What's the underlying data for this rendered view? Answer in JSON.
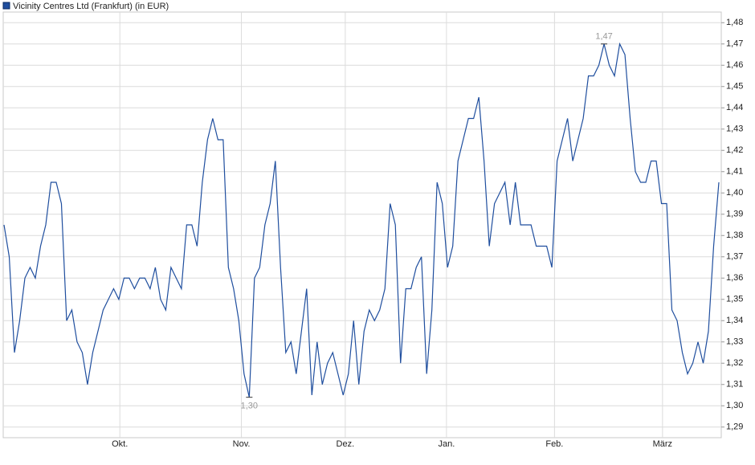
{
  "chart_data": {
    "type": "line",
    "title": "Vicinity Centres Ltd (Frankfurt) (in EUR)",
    "series": [
      {
        "name": "Vicinity Centres Ltd (Frankfurt) (in EUR)",
        "color": "#1f4e9e",
        "values": [
          1.385,
          1.37,
          1.325,
          1.34,
          1.36,
          1.365,
          1.36,
          1.375,
          1.385,
          1.405,
          1.405,
          1.395,
          1.34,
          1.345,
          1.33,
          1.325,
          1.31,
          1.325,
          1.335,
          1.345,
          1.35,
          1.355,
          1.35,
          1.36,
          1.36,
          1.355,
          1.36,
          1.36,
          1.355,
          1.365,
          1.35,
          1.345,
          1.365,
          1.36,
          1.355,
          1.385,
          1.385,
          1.375,
          1.405,
          1.425,
          1.435,
          1.425,
          1.425,
          1.365,
          1.355,
          1.34,
          1.315,
          1.304,
          1.36,
          1.365,
          1.385,
          1.395,
          1.415,
          1.365,
          1.325,
          1.33,
          1.315,
          1.335,
          1.355,
          1.305,
          1.33,
          1.31,
          1.32,
          1.325,
          1.315,
          1.305,
          1.315,
          1.34,
          1.31,
          1.335,
          1.345,
          1.34,
          1.345,
          1.355,
          1.395,
          1.385,
          1.32,
          1.355,
          1.355,
          1.365,
          1.37,
          1.315,
          1.345,
          1.405,
          1.395,
          1.365,
          1.375,
          1.415,
          1.425,
          1.435,
          1.435,
          1.445,
          1.415,
          1.375,
          1.395,
          1.4,
          1.405,
          1.385,
          1.405,
          1.385,
          1.385,
          1.385,
          1.375,
          1.375,
          1.375,
          1.365,
          1.415,
          1.425,
          1.435,
          1.415,
          1.425,
          1.435,
          1.455,
          1.455,
          1.46,
          1.47,
          1.46,
          1.455,
          1.47,
          1.465,
          1.435,
          1.41,
          1.405,
          1.405,
          1.415,
          1.415,
          1.395,
          1.395,
          1.345,
          1.34,
          1.325,
          1.315,
          1.32,
          1.33,
          1.32,
          1.335,
          1.375,
          1.405
        ],
        "value_labels": [
          null,
          null,
          null,
          null,
          null,
          null,
          null,
          null,
          null,
          null,
          null,
          null,
          null,
          null,
          null,
          null,
          null,
          null,
          null,
          null,
          null,
          null,
          null,
          null,
          null,
          null,
          null,
          null,
          null,
          null,
          null,
          null,
          null,
          null,
          null,
          null,
          null,
          null,
          null,
          null,
          null,
          null,
          null,
          null,
          null,
          null,
          null,
          "1,30",
          null,
          null,
          null,
          null,
          null,
          null,
          null,
          null,
          null,
          null,
          null,
          null,
          null,
          null,
          null,
          null,
          null,
          null,
          null,
          null,
          null,
          null,
          null,
          null,
          null,
          null,
          null,
          null,
          null,
          null,
          null,
          null,
          null,
          null,
          null,
          null,
          null,
          null,
          null,
          null,
          null,
          null,
          null,
          null,
          null,
          null,
          null,
          null,
          null,
          null,
          null,
          null,
          null,
          null,
          null,
          null,
          null,
          null,
          null,
          null,
          null,
          null,
          null,
          null,
          null,
          null,
          null,
          "1,47",
          null,
          null,
          null,
          null,
          null,
          null,
          null,
          null,
          null,
          null,
          null,
          null,
          null,
          null,
          null,
          null,
          null,
          null,
          null,
          null,
          null,
          null
        ]
      }
    ],
    "xlim": [
      0,
      137
    ],
    "xticks": [
      {
        "value": 22.2,
        "label": "Okt."
      },
      {
        "value": 45.5,
        "label": "Nov."
      },
      {
        "value": 65.4,
        "label": "Dez."
      },
      {
        "value": 84.8,
        "label": "Jan."
      },
      {
        "value": 105.5,
        "label": "Feb."
      },
      {
        "value": 126.2,
        "label": "März"
      }
    ],
    "ylim": [
      1.285,
      1.485
    ],
    "yticks": [
      {
        "value": 1.29,
        "label": "1,29"
      },
      {
        "value": 1.3,
        "label": "1,30"
      },
      {
        "value": 1.31,
        "label": "1,31"
      },
      {
        "value": 1.32,
        "label": "1,32"
      },
      {
        "value": 1.33,
        "label": "1,33"
      },
      {
        "value": 1.34,
        "label": "1,34"
      },
      {
        "value": 1.35,
        "label": "1,35"
      },
      {
        "value": 1.36,
        "label": "1,36"
      },
      {
        "value": 1.37,
        "label": "1,37"
      },
      {
        "value": 1.38,
        "label": "1,38"
      },
      {
        "value": 1.39,
        "label": "1,39"
      },
      {
        "value": 1.4,
        "label": "1,40"
      },
      {
        "value": 1.41,
        "label": "1,41"
      },
      {
        "value": 1.42,
        "label": "1,42"
      },
      {
        "value": 1.43,
        "label": "1,43"
      },
      {
        "value": 1.44,
        "label": "1,44"
      },
      {
        "value": 1.45,
        "label": "1,45"
      },
      {
        "value": 1.46,
        "label": "1,46"
      },
      {
        "value": 1.47,
        "label": "1,47"
      },
      {
        "value": 1.48,
        "label": "1,48"
      }
    ],
    "grid": true
  }
}
